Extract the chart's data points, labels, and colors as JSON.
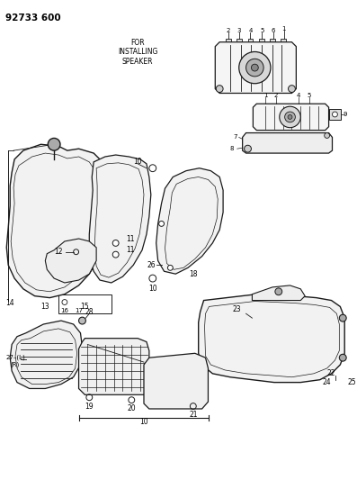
{
  "title_code": "92733 600",
  "bg_color": "#ffffff",
  "line_color": "#1a1a1a",
  "text_color": "#000000",
  "speaker_label": "FOR\nINSTALLING\nSPEAKER",
  "figsize": [
    3.97,
    5.33
  ],
  "dpi": 100
}
